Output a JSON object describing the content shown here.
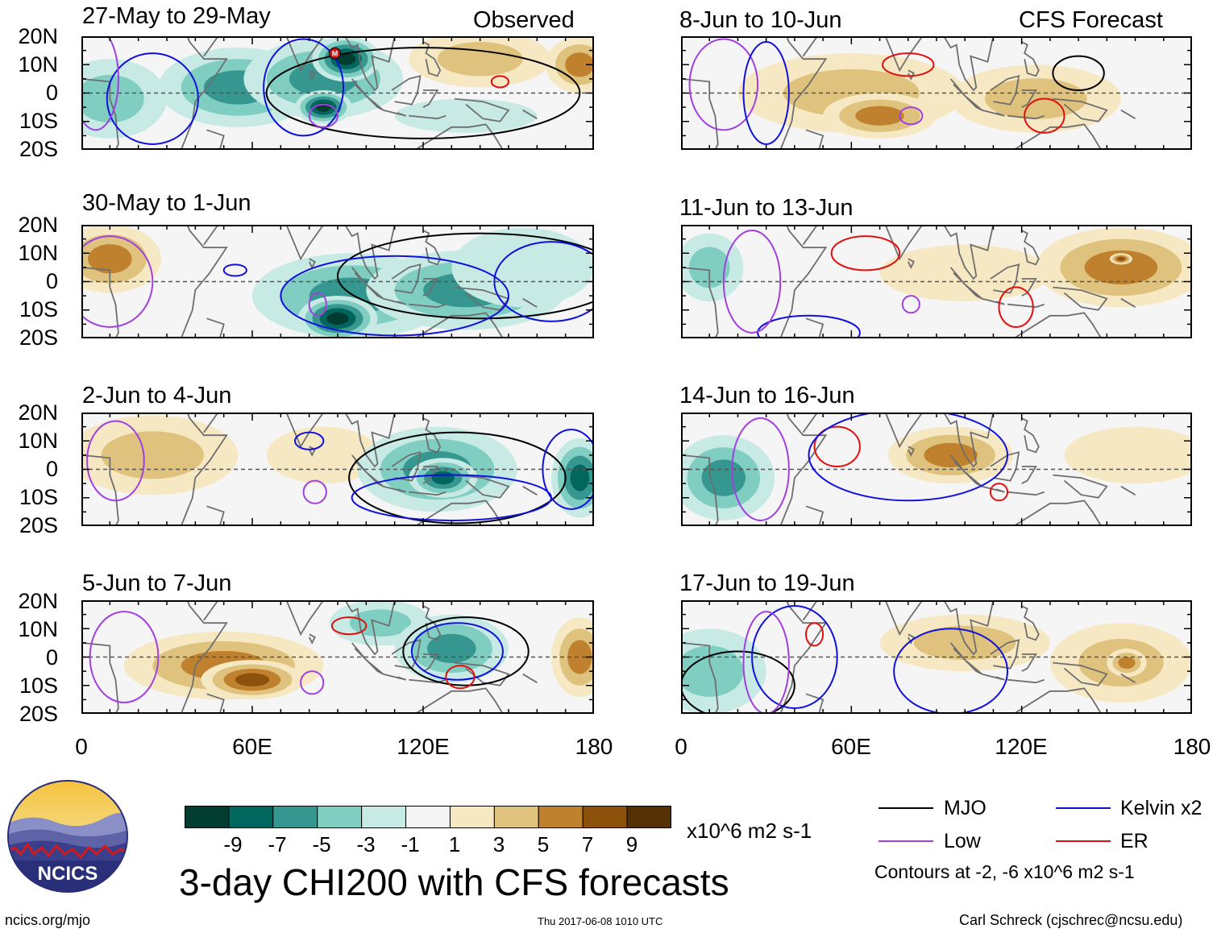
{
  "headers": {
    "observed": "Observed",
    "forecast": "CFS Forecast"
  },
  "panels": {
    "left": [
      "27-May to 29-May",
      "30-May to 1-Jun",
      "2-Jun to 4-Jun",
      "5-Jun to 7-Jun"
    ],
    "right": [
      "8-Jun to 10-Jun",
      "11-Jun to 13-Jun",
      "14-Jun to 16-Jun",
      "17-Jun to 19-Jun"
    ]
  },
  "lat_labels": [
    "20N",
    "10N",
    "0",
    "10S",
    "20S"
  ],
  "lon_labels": [
    "0",
    "60E",
    "120E",
    "180"
  ],
  "colorbar": {
    "values": [
      "-9",
      "-7",
      "-5",
      "-3",
      "-1",
      "1",
      "3",
      "5",
      "7",
      "9"
    ],
    "colors": [
      "#003c30",
      "#01665e",
      "#35978f",
      "#80cdc1",
      "#c7eae5",
      "#f5f5f5",
      "#f6e8c3",
      "#dfc27d",
      "#bf812d",
      "#8c510a",
      "#543005"
    ],
    "units": "x10^6 m2 s-1"
  },
  "main_title": "3-day CHI200 with CFS forecasts",
  "legend": {
    "items": [
      {
        "label": "MJO",
        "color": "#000000"
      },
      {
        "label": "Kelvin x2",
        "color": "#1010dd"
      },
      {
        "label": "Low",
        "color": "#a040e0"
      },
      {
        "label": "ER",
        "color": "#e01010"
      }
    ],
    "contours": "Contours at -2, -6 x10^6 m2 s-1"
  },
  "logo_text": "NCICS",
  "footer": {
    "left": "ncics.org/mjo",
    "center": "Thu 2017-06-08 1010 UTC",
    "right": "Carl Schreck (cjschrec@ncsu.edu)"
  },
  "mjo_marker": "M",
  "fills": [
    [
      {
        "lon": 55,
        "lat": 2,
        "v": -6,
        "rx": 28,
        "ry": 14
      },
      {
        "lon": 85,
        "lat": 5,
        "v": -7,
        "rx": 28,
        "ry": 14
      },
      {
        "lon": 93,
        "lat": 12,
        "v": -10,
        "rx": 12,
        "ry": 8
      },
      {
        "lon": 85,
        "lat": -5,
        "v": -10,
        "rx": 10,
        "ry": 6
      },
      {
        "lon": 10,
        "lat": -2,
        "v": -4,
        "rx": 20,
        "ry": 14
      },
      {
        "lon": 140,
        "lat": 12,
        "v": 5,
        "rx": 25,
        "ry": 10
      },
      {
        "lon": 175,
        "lat": 10,
        "v": 7,
        "rx": 12,
        "ry": 10
      },
      {
        "lon": 135,
        "lat": -8,
        "v": -2,
        "rx": 25,
        "ry": 6
      }
    ],
    [
      {
        "lon": 10,
        "lat": 8,
        "v": 6,
        "rx": 18,
        "ry": 12
      },
      {
        "lon": 95,
        "lat": -5,
        "v": -6,
        "rx": 35,
        "ry": 15
      },
      {
        "lon": 90,
        "lat": -13,
        "v": -10,
        "rx": 14,
        "ry": 8
      },
      {
        "lon": 135,
        "lat": -3,
        "v": -6,
        "rx": 35,
        "ry": 14
      },
      {
        "lon": 155,
        "lat": 5,
        "v": -3,
        "rx": 25,
        "ry": 14
      }
    ],
    [
      {
        "lon": 25,
        "lat": 5,
        "v": 4,
        "rx": 30,
        "ry": 14
      },
      {
        "lon": 85,
        "lat": 5,
        "v": 2,
        "rx": 20,
        "ry": 10
      },
      {
        "lon": 125,
        "lat": 0,
        "v": -6,
        "rx": 28,
        "ry": 15
      },
      {
        "lon": 127,
        "lat": -3,
        "v": -9,
        "rx": 12,
        "ry": 7
      },
      {
        "lon": 175,
        "lat": -3,
        "v": -8,
        "rx": 10,
        "ry": 14
      }
    ],
    [
      {
        "lon": 50,
        "lat": -3,
        "v": 6,
        "rx": 35,
        "ry": 12
      },
      {
        "lon": 60,
        "lat": -8,
        "v": 9,
        "rx": 18,
        "ry": 7
      },
      {
        "lon": 105,
        "lat": 12,
        "v": -5,
        "rx": 18,
        "ry": 8
      },
      {
        "lon": 130,
        "lat": 3,
        "v": -7,
        "rx": 20,
        "ry": 12
      },
      {
        "lon": 175,
        "lat": 0,
        "v": 6,
        "rx": 10,
        "ry": 14
      }
    ],
    [
      {
        "lon": 60,
        "lat": 0,
        "v": 4,
        "rx": 40,
        "ry": 14
      },
      {
        "lon": 70,
        "lat": -8,
        "v": 7,
        "rx": 20,
        "ry": 8
      },
      {
        "lon": 125,
        "lat": -2,
        "v": 5,
        "rx": 30,
        "ry": 12
      },
      {
        "lon": 10,
        "lat": -5,
        "v": -1,
        "rx": 10,
        "ry": 8
      }
    ],
    [
      {
        "lon": 10,
        "lat": 5,
        "v": -4,
        "rx": 12,
        "ry": 12
      },
      {
        "lon": 100,
        "lat": 3,
        "v": 3,
        "rx": 30,
        "ry": 10
      },
      {
        "lon": 155,
        "lat": 5,
        "v": 6,
        "rx": 30,
        "ry": 14
      },
      {
        "lon": 155,
        "lat": 8,
        "v": 8,
        "rx": 4,
        "ry": 2
      }
    ],
    [
      {
        "lon": 15,
        "lat": -3,
        "v": -6,
        "rx": 18,
        "ry": 15
      },
      {
        "lon": 95,
        "lat": 5,
        "v": 6,
        "rx": 22,
        "ry": 10
      },
      {
        "lon": 160,
        "lat": 5,
        "v": 3,
        "rx": 25,
        "ry": 10
      }
    ],
    [
      {
        "lon": 10,
        "lat": -5,
        "v": -5,
        "rx": 20,
        "ry": 15
      },
      {
        "lon": 100,
        "lat": 5,
        "v": 4,
        "rx": 30,
        "ry": 10
      },
      {
        "lon": 155,
        "lat": -2,
        "v": 5,
        "rx": 25,
        "ry": 14
      },
      {
        "lon": 157,
        "lat": -2,
        "v": 7,
        "rx": 7,
        "ry": 5
      }
    ]
  ],
  "contours": [
    [
      {
        "lon": 120,
        "lat": 0,
        "rx": 55,
        "ry": 16,
        "c": "mjo"
      },
      {
        "lon": 78,
        "lat": 2,
        "rx": 14,
        "ry": 17,
        "c": "kelvin"
      },
      {
        "lon": 25,
        "lat": -2,
        "rx": 16,
        "ry": 16,
        "c": "kelvin"
      },
      {
        "lon": 85,
        "lat": -8,
        "rx": 5,
        "ry": 4,
        "c": "low"
      },
      {
        "lon": 147,
        "lat": 4,
        "rx": 3,
        "ry": 2,
        "c": "er"
      },
      {
        "lon": 5,
        "lat": 5,
        "rx": 8,
        "ry": 18,
        "c": "low"
      }
    ],
    [
      {
        "lon": 140,
        "lat": 2,
        "rx": 50,
        "ry": 15,
        "c": "mjo"
      },
      {
        "lon": 110,
        "lat": -5,
        "rx": 40,
        "ry": 14,
        "c": "kelvin"
      },
      {
        "lon": 165,
        "lat": 0,
        "rx": 20,
        "ry": 14,
        "c": "kelvin"
      },
      {
        "lon": 10,
        "lat": 0,
        "rx": 15,
        "ry": 16,
        "c": "low"
      },
      {
        "lon": 83,
        "lat": -8,
        "rx": 3,
        "ry": 4,
        "c": "low"
      },
      {
        "lon": 54,
        "lat": 4,
        "rx": 4,
        "ry": 2,
        "c": "kelvin"
      }
    ],
    [
      {
        "lon": 132,
        "lat": -3,
        "rx": 38,
        "ry": 16,
        "c": "mjo"
      },
      {
        "lon": 130,
        "lat": -10,
        "rx": 35,
        "ry": 8,
        "c": "kelvin"
      },
      {
        "lon": 172,
        "lat": 0,
        "rx": 10,
        "ry": 14,
        "c": "kelvin"
      },
      {
        "lon": 80,
        "lat": 10,
        "rx": 5,
        "ry": 3,
        "c": "kelvin"
      },
      {
        "lon": 82,
        "lat": -8,
        "rx": 4,
        "ry": 4,
        "c": "low"
      },
      {
        "lon": 12,
        "lat": 3,
        "rx": 10,
        "ry": 14,
        "c": "low"
      }
    ],
    [
      {
        "lon": 135,
        "lat": 2,
        "rx": 22,
        "ry": 12,
        "c": "mjo"
      },
      {
        "lon": 132,
        "lat": 2,
        "rx": 16,
        "ry": 10,
        "c": "kelvin"
      },
      {
        "lon": 94,
        "lat": 11,
        "rx": 6,
        "ry": 3,
        "c": "er"
      },
      {
        "lon": 133,
        "lat": -7,
        "rx": 5,
        "ry": 4,
        "c": "er"
      },
      {
        "lon": 81,
        "lat": -9,
        "rx": 4,
        "ry": 4,
        "c": "low"
      },
      {
        "lon": 15,
        "lat": 0,
        "rx": 12,
        "ry": 16,
        "c": "low"
      }
    ],
    [
      {
        "lon": 140,
        "lat": 7,
        "rx": 9,
        "ry": 6,
        "c": "mjo"
      },
      {
        "lon": 80,
        "lat": 10,
        "rx": 9,
        "ry": 4,
        "c": "er"
      },
      {
        "lon": 128,
        "lat": -8,
        "rx": 7,
        "ry": 6,
        "c": "er"
      },
      {
        "lon": 81,
        "lat": -8,
        "rx": 4,
        "ry": 3,
        "c": "low"
      },
      {
        "lon": 15,
        "lat": 3,
        "rx": 12,
        "ry": 16,
        "c": "low"
      },
      {
        "lon": 30,
        "lat": 0,
        "rx": 8,
        "ry": 18,
        "c": "kelvin"
      }
    ],
    [
      {
        "lon": 65,
        "lat": 10,
        "rx": 12,
        "ry": 6,
        "c": "er"
      },
      {
        "lon": 118,
        "lat": -9,
        "rx": 6,
        "ry": 7,
        "c": "er"
      },
      {
        "lon": 81,
        "lat": -8,
        "rx": 3,
        "ry": 3,
        "c": "low"
      },
      {
        "lon": 45,
        "lat": -18,
        "rx": 18,
        "ry": 6,
        "c": "kelvin"
      },
      {
        "lon": 25,
        "lat": 0,
        "rx": 10,
        "ry": 18,
        "c": "low"
      }
    ],
    [
      {
        "lon": 55,
        "lat": 8,
        "rx": 8,
        "ry": 7,
        "c": "er"
      },
      {
        "lon": 112,
        "lat": -8,
        "rx": 3,
        "ry": 3,
        "c": "er"
      },
      {
        "lon": 80,
        "lat": 5,
        "rx": 35,
        "ry": 16,
        "c": "kelvin"
      },
      {
        "lon": 28,
        "lat": 0,
        "rx": 10,
        "ry": 18,
        "c": "low"
      }
    ],
    [
      {
        "lon": 47,
        "lat": 8,
        "rx": 3,
        "ry": 4,
        "c": "er"
      },
      {
        "lon": 20,
        "lat": -10,
        "rx": 20,
        "ry": 12,
        "c": "mjo"
      },
      {
        "lon": 40,
        "lat": 0,
        "rx": 15,
        "ry": 18,
        "c": "kelvin"
      },
      {
        "lon": 30,
        "lat": -2,
        "rx": 8,
        "ry": 18,
        "c": "low"
      },
      {
        "lon": 95,
        "lat": -5,
        "rx": 20,
        "ry": 15,
        "c": "kelvin"
      }
    ]
  ]
}
